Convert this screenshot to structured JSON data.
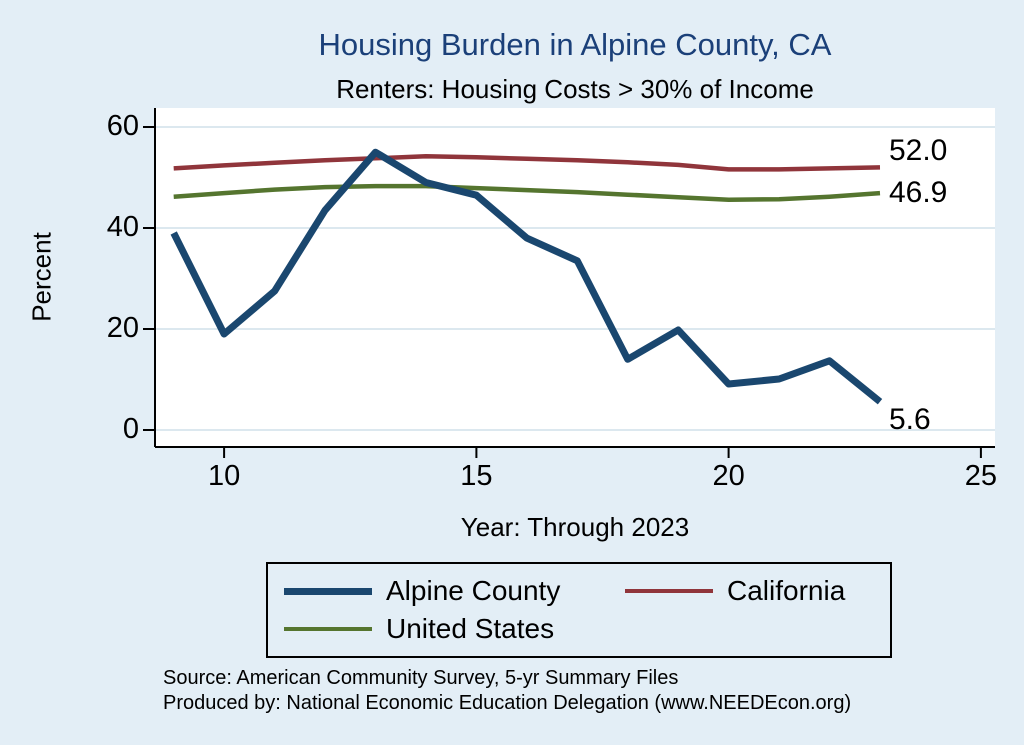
{
  "notes": {
    "source": "Source: American Community Survey, 5-yr Summary Files",
    "producer": "Produced by: National Economic Education Delegation (www.NEEDEcon.org)"
  },
  "colors": {
    "background": "#e3eef6",
    "title_text": "#1b4079",
    "plot_background": "#ffffff",
    "grid": "#d1e0ea",
    "axis": "#000000",
    "alpine_county": "#1a476f",
    "california": "#90353b",
    "united_states": "#55752f"
  },
  "chart_data": {
    "type": "line",
    "title": "Housing Burden in Alpine County, CA",
    "subtitle": "Renters: Housing Costs > 30% of Income",
    "xlabel": "Year: Through 2023",
    "ylabel": "Percent",
    "x": [
      9,
      10,
      11,
      12,
      13,
      14,
      15,
      16,
      17,
      18,
      19,
      20,
      21,
      22,
      23
    ],
    "series": [
      {
        "name": "Alpine County",
        "color": "#1a476f",
        "stroke_width": 7,
        "values": [
          39,
          19,
          27.5,
          43.5,
          55,
          49,
          46.5,
          38,
          33.5,
          14,
          19.8,
          9.1,
          10.1,
          13.7,
          5.6
        ],
        "end_label": "5.6",
        "end_label_dy": 18
      },
      {
        "name": "California",
        "color": "#90353b",
        "stroke_width": 4.5,
        "values": [
          51.8,
          52.4,
          52.9,
          53.4,
          53.8,
          54.2,
          54.0,
          53.7,
          53.4,
          53.0,
          52.5,
          51.6,
          51.6,
          51.8,
          52.0
        ],
        "end_label": "52.0",
        "end_label_dy": -16
      },
      {
        "name": "United States",
        "color": "#55752f",
        "stroke_width": 4.5,
        "values": [
          46.2,
          46.9,
          47.6,
          48.1,
          48.3,
          48.3,
          47.9,
          47.5,
          47.1,
          46.6,
          46.1,
          45.6,
          45.7,
          46.2,
          46.9
        ],
        "end_label": "46.9",
        "end_label_dy": 0
      }
    ],
    "draw_order": [
      1,
      2,
      0
    ],
    "xticks": [
      10,
      15,
      20,
      25
    ],
    "yticks": [
      0,
      20,
      40,
      60
    ],
    "xlim": [
      8.63,
      25.28
    ],
    "ylim": [
      -3.37,
      63.76
    ],
    "grid": "horizontal",
    "legend_position": "bottom"
  }
}
